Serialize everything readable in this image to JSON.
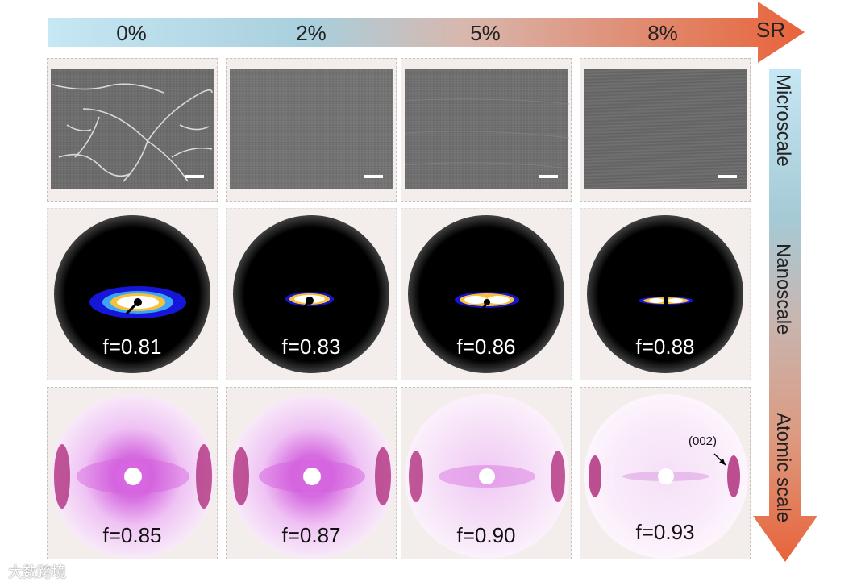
{
  "top_axis": {
    "label": "SR",
    "ticks": [
      "0%",
      "2%",
      "5%",
      "8%"
    ]
  },
  "side_axis": {
    "labels": [
      "Microscale",
      "Nanoscale",
      "Atomic scale"
    ]
  },
  "nanoscale_row": {
    "values": [
      "f=0.81",
      "f=0.83",
      "f=0.86",
      "f=0.88"
    ]
  },
  "atomic_row": {
    "values": [
      "f=0.85",
      "f=0.87",
      "f=0.90",
      "f=0.93"
    ],
    "annotation": "(002)"
  },
  "watermark": "大数跨境",
  "colors": {
    "arrow_start": "#bfe3f1",
    "arrow_end": "#e8633a",
    "panel_bg": "#f3eeec"
  }
}
